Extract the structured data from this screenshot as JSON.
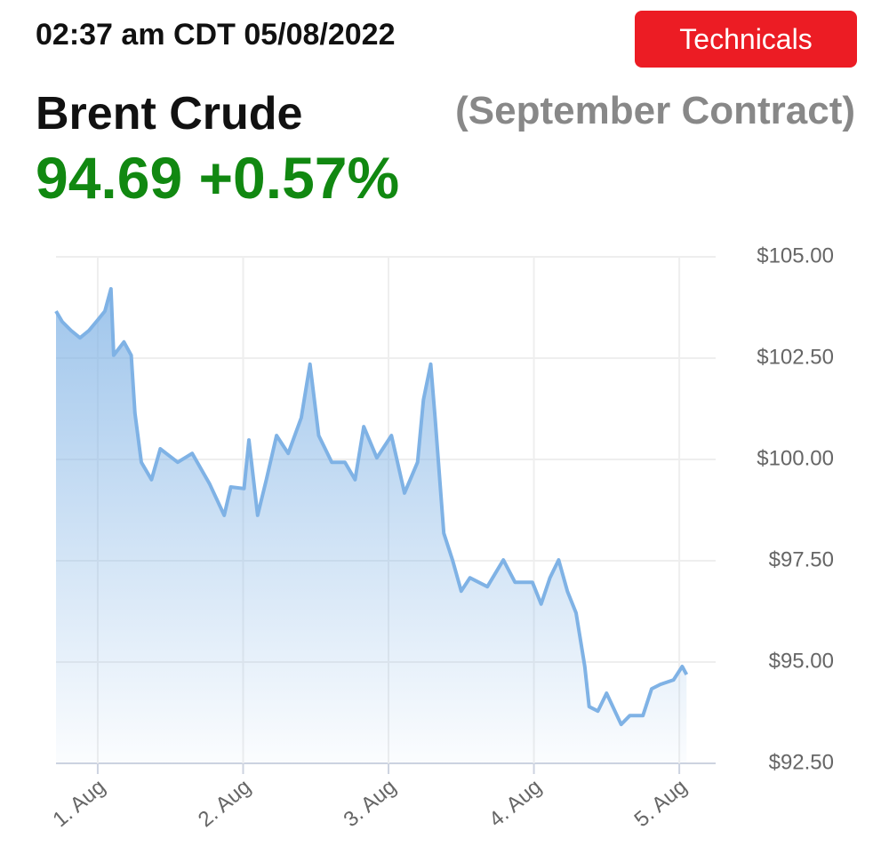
{
  "header": {
    "timestamp": "02:37 am CDT 05/08/2022",
    "button": "Technicals",
    "title": "Brent Crude",
    "contract": "(September Contract)",
    "quote": "94.69 +0.57%"
  },
  "chart_data": {
    "type": "area",
    "color": "#7fb2e5",
    "x": [
      0.713,
      0.756,
      0.817,
      0.878,
      0.939,
      1.0,
      1.049,
      1.091,
      1.11,
      1.18,
      1.23,
      1.256,
      1.3,
      1.37,
      1.43,
      1.55,
      1.65,
      1.77,
      1.87,
      1.915,
      2.006,
      2.04,
      2.1,
      2.16,
      2.23,
      2.31,
      2.4,
      2.46,
      2.52,
      2.61,
      2.7,
      2.77,
      2.83,
      2.92,
      3.02,
      3.11,
      3.2,
      3.24,
      3.29,
      3.32,
      3.38,
      3.44,
      3.5,
      3.56,
      3.68,
      3.79,
      3.87,
      3.99,
      4.05,
      4.11,
      4.17,
      4.23,
      4.29,
      4.35,
      4.38,
      4.44,
      4.5,
      4.6,
      4.66,
      4.75,
      4.81,
      4.87,
      4.96,
      5.02,
      5.05
    ],
    "values": [
      103.66,
      103.4,
      103.18,
      103.0,
      103.18,
      103.44,
      103.66,
      104.21,
      102.57,
      102.9,
      102.57,
      101.14,
      99.93,
      99.5,
      100.26,
      99.93,
      100.15,
      99.39,
      98.62,
      99.32,
      99.28,
      100.48,
      98.62,
      99.5,
      100.59,
      100.15,
      101.03,
      102.35,
      100.59,
      99.93,
      99.93,
      99.5,
      100.81,
      100.04,
      100.59,
      99.17,
      99.93,
      101.47,
      102.35,
      101.03,
      98.18,
      97.52,
      96.75,
      97.08,
      96.86,
      97.52,
      96.97,
      96.97,
      96.43,
      97.08,
      97.52,
      96.75,
      96.21,
      94.89,
      93.9,
      93.79,
      94.23,
      93.46,
      93.68,
      93.68,
      94.34,
      94.45,
      94.56,
      94.89,
      94.69
    ],
    "xlim": [
      0.713,
      5.25
    ],
    "xticks": [
      {
        "value": 1,
        "label": "1. Aug"
      },
      {
        "value": 2,
        "label": "2. Aug"
      },
      {
        "value": 3,
        "label": "3. Aug"
      },
      {
        "value": 4,
        "label": "4. Aug"
      },
      {
        "value": 5,
        "label": "5. Aug"
      }
    ],
    "ylim": [
      92.5,
      105
    ],
    "yticks": [
      {
        "value": 92.5,
        "label": "$92.50"
      },
      {
        "value": 95,
        "label": "$95.00"
      },
      {
        "value": 97.5,
        "label": "$97.50"
      },
      {
        "value": 100,
        "label": "$100.00"
      },
      {
        "value": 102.5,
        "label": "$102.50"
      },
      {
        "value": 105,
        "label": "$105.00"
      }
    ],
    "grid": true
  }
}
